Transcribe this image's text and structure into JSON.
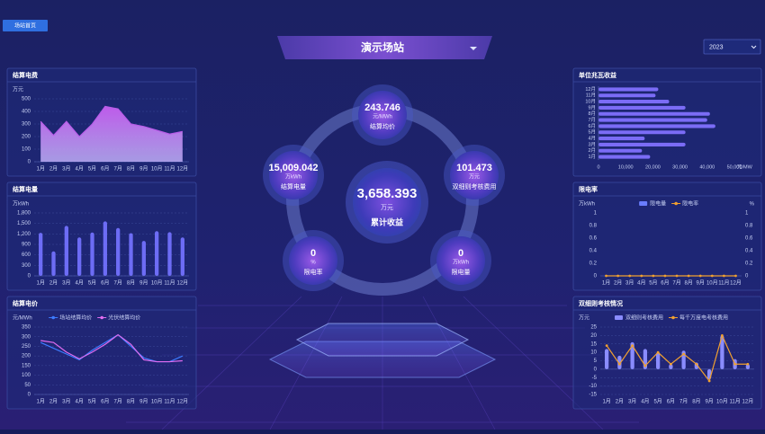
{
  "nav_tab": "场站首页",
  "title": "演示场站",
  "year": "2023",
  "center_stats": [
    {
      "value": 243.746,
      "unit": "元/MWh",
      "label": "结算均价"
    },
    {
      "value": "15,009.042",
      "unit": "万kWh",
      "label": "结算电量"
    },
    {
      "value": 101.473,
      "unit": "万元",
      "label": "双细则考核费用"
    },
    {
      "value": 0,
      "unit": "%",
      "label": "限电率"
    },
    {
      "value": 0,
      "unit": "万kWh",
      "label": "限电量"
    }
  ],
  "total": {
    "value": "3,658.393",
    "unit": "万元",
    "label": "累计收益"
  },
  "chart_data": [
    {
      "type": "area",
      "title": "结算电费",
      "y_label": "万元",
      "color": "#b85ce8",
      "categories": [
        "1月",
        "2月",
        "3月",
        "4月",
        "5月",
        "6月",
        "7月",
        "8月",
        "9月",
        "10月",
        "11月",
        "12月"
      ],
      "values": [
        320,
        210,
        320,
        200,
        300,
        440,
        420,
        300,
        280,
        250,
        220,
        240
      ],
      "ylim": [
        0,
        500
      ],
      "yticks": [
        0,
        100,
        200,
        300,
        400,
        500
      ],
      "grid": true
    },
    {
      "type": "bar",
      "title": "结算电量",
      "y_label": "万kWh",
      "color": "#6d6cf5",
      "categories": [
        "1月",
        "2月",
        "3月",
        "4月",
        "5月",
        "6月",
        "7月",
        "8月",
        "9月",
        "10月",
        "11月",
        "12月"
      ],
      "values": [
        1230,
        700,
        1430,
        1100,
        1240,
        1560,
        1370,
        1220,
        1000,
        1280,
        1250,
        1100
      ],
      "ylim": [
        0,
        1800
      ],
      "yticks": [
        0,
        300,
        600,
        900,
        {
          "value": 1200,
          "label": "1,200"
        },
        {
          "value": 1500,
          "label": "1,500"
        },
        {
          "value": 1800,
          "label": "1,800"
        }
      ],
      "grid": true
    },
    {
      "type": "line",
      "title": "结算电价",
      "y_label": "元/MWh",
      "categories": [
        "1月",
        "2月",
        "3月",
        "4月",
        "5月",
        "6月",
        "7月",
        "8月",
        "9月",
        "10月",
        "11月",
        "12月"
      ],
      "series": [
        {
          "name": "场站结算均价",
          "color": "#3d7bff",
          "values": [
            270,
            240,
            210,
            180,
            230,
            270,
            310,
            250,
            190,
            170,
            170,
            200
          ]
        },
        {
          "name": "光伏结算均价",
          "color": "#e06cf0",
          "values": [
            280,
            270,
            220,
            185,
            220,
            260,
            310,
            260,
            180,
            170,
            170,
            175
          ]
        }
      ],
      "ylim": [
        0,
        350
      ],
      "yticks": [
        0,
        50,
        100,
        150,
        200,
        250,
        300,
        350
      ],
      "grid": true
    },
    {
      "type": "barh",
      "title": "单位兆瓦收益",
      "x_label": "元/MW",
      "color": "#7b6cf6",
      "categories": [
        "12月",
        "11月",
        "10月",
        "9月",
        "8月",
        "7月",
        "6月",
        "5月",
        "4月",
        "3月",
        "2月",
        "1月"
      ],
      "values": [
        22000,
        21000,
        26000,
        32000,
        41000,
        40000,
        43000,
        32000,
        17000,
        32000,
        16000,
        19000
      ],
      "xlim": [
        0,
        50000
      ],
      "xticks": [
        0,
        {
          "value": 10000,
          "label": "10,000"
        },
        {
          "value": 20000,
          "label": "20,000"
        },
        {
          "value": 30000,
          "label": "30,000"
        },
        {
          "value": 40000,
          "label": "40,000"
        },
        {
          "value": 50000,
          "label": "50,000"
        }
      ],
      "grid": false
    },
    {
      "type": "combo",
      "title": "限电率",
      "y_label": "万kWh",
      "y2_label": "%",
      "categories": [
        "1月",
        "2月",
        "3月",
        "4月",
        "5月",
        "6月",
        "7月",
        "8月",
        "9月",
        "10月",
        "11月",
        "12月"
      ],
      "series": [
        {
          "name": "限电量",
          "type": "bar",
          "color": "#6a7dff",
          "values": [
            0,
            0,
            0,
            0,
            0,
            0,
            0,
            0,
            0,
            0,
            0,
            0
          ]
        },
        {
          "name": "限电率",
          "type": "line",
          "axis": "y2",
          "color": "#f0a030",
          "values": [
            0,
            0,
            0,
            0,
            0,
            0,
            0,
            0,
            0,
            0,
            0,
            0
          ]
        }
      ],
      "ylim": [
        0,
        1
      ],
      "yticks": [
        0,
        0.2,
        0.4,
        0.6,
        0.8,
        1
      ],
      "y2lim": [
        0,
        1
      ],
      "y2ticks": [
        0,
        0.2,
        0.4,
        0.6,
        0.8,
        1
      ],
      "grid": false
    },
    {
      "type": "combo",
      "title": "双细则考核情况",
      "y_label": "万元",
      "categories": [
        "1月",
        "2月",
        "3月",
        "4月",
        "5月",
        "6月",
        "7月",
        "8月",
        "9月",
        "10月",
        "11月",
        "12月"
      ],
      "series": [
        {
          "name": "双细则考核费用",
          "type": "bar",
          "color": "#8a8cff",
          "values": [
            12,
            8,
            16,
            12,
            10,
            3,
            11,
            4,
            -6,
            20,
            6,
            3
          ]
        },
        {
          "name": "每千万度电考核费用",
          "type": "line",
          "color": "#f0a030",
          "values": [
            14,
            3,
            14,
            2,
            10,
            3,
            9,
            3,
            -7,
            20,
            3,
            3
          ]
        }
      ],
      "ylim": [
        -15,
        25
      ],
      "yticks": [
        -15,
        -10,
        -5,
        0,
        5,
        10,
        15,
        20,
        25
      ],
      "grid": true
    }
  ]
}
